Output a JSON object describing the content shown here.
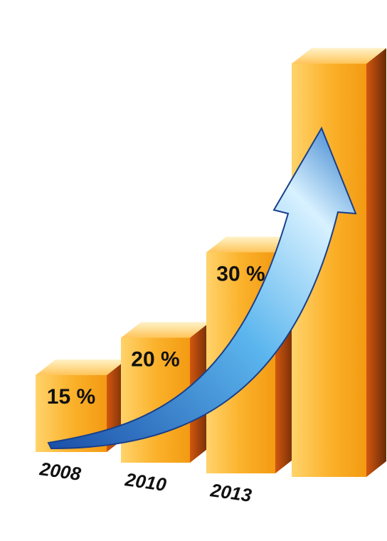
{
  "chart_data": {
    "type": "bar3d",
    "categories": [
      "2008",
      "2010",
      "2013",
      null
    ],
    "values": [
      15,
      20,
      30,
      50
    ],
    "value_labels": [
      "15 %",
      "20 %",
      "30 %",
      null
    ],
    "color": "#f7a21b"
  }
}
